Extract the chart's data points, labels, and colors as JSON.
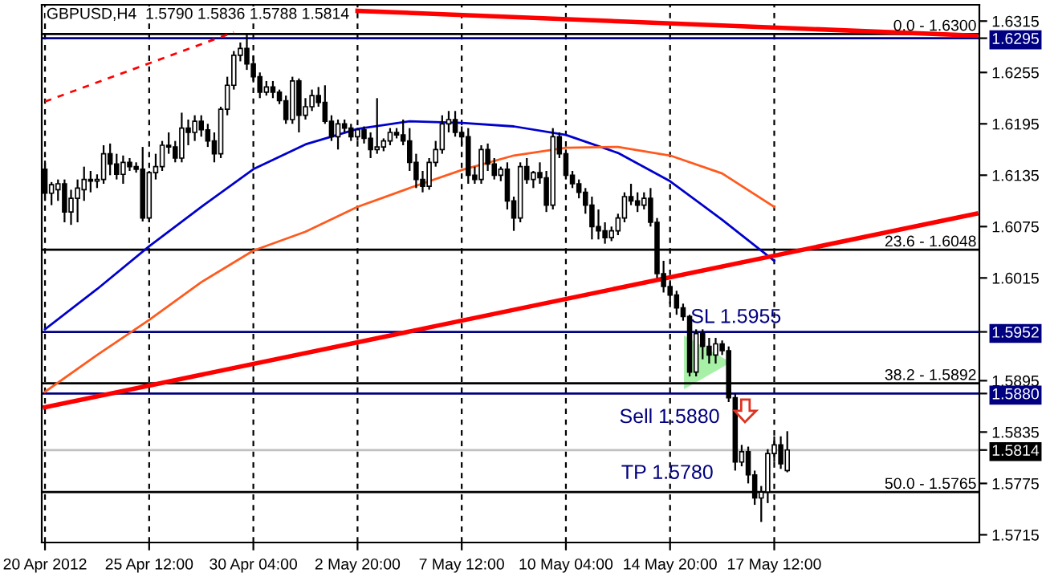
{
  "chart_data": {
    "type": "candlestick",
    "title": "GBPUSD,H4  1.5790 1.5836 1.5788 1.5814",
    "categories": [
      "20 Apr 2012",
      null,
      null,
      null,
      null,
      null,
      null,
      null,
      null,
      null,
      null,
      null,
      null,
      null,
      null,
      null,
      "25 Apr 12:00",
      null,
      null,
      null,
      null,
      null,
      null,
      null,
      null,
      null,
      null,
      null,
      null,
      null,
      null,
      null,
      "30 Apr 04:00",
      null,
      null,
      null,
      null,
      null,
      null,
      null,
      null,
      null,
      null,
      null,
      null,
      null,
      null,
      null,
      "2 May 20:00",
      null,
      null,
      null,
      null,
      null,
      null,
      null,
      null,
      null,
      null,
      null,
      null,
      null,
      null,
      null,
      "7 May 12:00",
      null,
      null,
      null,
      null,
      null,
      null,
      null,
      null,
      null,
      null,
      null,
      null,
      null,
      null,
      null,
      "10 May 04:00",
      null,
      null,
      null,
      null,
      null,
      null,
      null,
      null,
      null,
      null,
      null,
      null,
      null,
      null,
      null,
      "14 May 20:00",
      null,
      null,
      null,
      null,
      null,
      null,
      null,
      null,
      null,
      null,
      null,
      null,
      null,
      null,
      null,
      "17 May 12:00",
      null,
      null,
      null,
      null,
      null,
      null,
      null,
      null,
      null,
      null,
      null,
      null,
      null,
      null,
      null,
      null,
      null,
      null,
      null,
      null,
      null,
      null,
      null,
      null,
      null,
      null,
      null,
      null,
      null,
      null,
      null
    ],
    "ohlc": [
      [
        1.6142,
        1.6152,
        1.6105,
        1.6114
      ],
      [
        1.6114,
        1.6127,
        1.61,
        1.6124
      ],
      [
        1.6118,
        1.613,
        1.6105,
        1.6125
      ],
      [
        1.6125,
        1.613,
        1.608,
        1.6092
      ],
      [
        1.6092,
        1.6118,
        1.6077,
        1.6108
      ],
      [
        1.6108,
        1.613,
        1.608,
        1.612
      ],
      [
        1.6118,
        1.6145,
        1.6105,
        1.613
      ],
      [
        1.613,
        1.614,
        1.6115,
        1.6128
      ],
      [
        1.6128,
        1.6136,
        1.612,
        1.613
      ],
      [
        1.613,
        1.617,
        1.6125,
        1.616
      ],
      [
        1.616,
        1.6172,
        1.6135,
        1.6148
      ],
      [
        1.6148,
        1.616,
        1.613,
        1.6136
      ],
      [
        1.6136,
        1.6158,
        1.6125,
        1.615
      ],
      [
        1.615,
        1.6155,
        1.614,
        1.6145
      ],
      [
        1.6145,
        1.615,
        1.6138,
        1.6142
      ],
      [
        1.6142,
        1.6168,
        1.6081,
        1.6085
      ],
      [
        1.6085,
        1.614,
        1.608,
        1.6138
      ],
      [
        1.6138,
        1.616,
        1.613,
        1.6145
      ],
      [
        1.6145,
        1.6175,
        1.614,
        1.617
      ],
      [
        1.617,
        1.6185,
        1.616,
        1.6168
      ],
      [
        1.6168,
        1.6175,
        1.615,
        1.6155
      ],
      [
        1.6155,
        1.6208,
        1.615,
        1.619
      ],
      [
        1.619,
        1.62,
        1.617,
        1.6185
      ],
      [
        1.6185,
        1.6205,
        1.6175,
        1.6198
      ],
      [
        1.6198,
        1.6205,
        1.618,
        1.6188
      ],
      [
        1.6188,
        1.6195,
        1.6168,
        1.6175
      ],
      [
        1.6175,
        1.6185,
        1.615,
        1.616
      ],
      [
        1.616,
        1.6215,
        1.6155,
        1.6212
      ],
      [
        1.6212,
        1.625,
        1.6205,
        1.624
      ],
      [
        1.624,
        1.628,
        1.6235,
        1.6275
      ],
      [
        1.6275,
        1.629,
        1.6268,
        1.6283
      ],
      [
        1.6283,
        1.63,
        1.6258,
        1.6265
      ],
      [
        1.6265,
        1.6275,
        1.6245,
        1.625
      ],
      [
        1.625,
        1.6255,
        1.6225,
        1.6232
      ],
      [
        1.6232,
        1.6245,
        1.6228,
        1.6238
      ],
      [
        1.6238,
        1.6245,
        1.6225,
        1.6232
      ],
      [
        1.6232,
        1.6235,
        1.6218,
        1.6222
      ],
      [
        1.6222,
        1.6228,
        1.6195,
        1.62
      ],
      [
        1.62,
        1.625,
        1.6195,
        1.6245
      ],
      [
        1.6245,
        1.6248,
        1.6185,
        1.6205
      ],
      [
        1.6205,
        1.6225,
        1.62,
        1.6215
      ],
      [
        1.6215,
        1.6235,
        1.621,
        1.6228
      ],
      [
        1.6228,
        1.6238,
        1.6215,
        1.622
      ],
      [
        1.622,
        1.624,
        1.6195,
        1.6198
      ],
      [
        1.6198,
        1.6205,
        1.6175,
        1.618
      ],
      [
        1.618,
        1.62,
        1.6165,
        1.6195
      ],
      [
        1.6195,
        1.62,
        1.6185,
        1.619
      ],
      [
        1.619,
        1.6195,
        1.6175,
        1.618
      ],
      [
        1.618,
        1.619,
        1.6175,
        1.6188
      ],
      [
        1.6188,
        1.6192,
        1.6172,
        1.6178
      ],
      [
        1.6178,
        1.6185,
        1.6155,
        1.6165
      ],
      [
        1.6165,
        1.6225,
        1.616,
        1.6168
      ],
      [
        1.6168,
        1.6178,
        1.6163,
        1.6175
      ],
      [
        1.6175,
        1.619,
        1.617,
        1.6185
      ],
      [
        1.6185,
        1.619,
        1.6178,
        1.6182
      ],
      [
        1.6182,
        1.62,
        1.617,
        1.6175
      ],
      [
        1.6175,
        1.619,
        1.614,
        1.615
      ],
      [
        1.615,
        1.616,
        1.612,
        1.613
      ],
      [
        1.613,
        1.614,
        1.6115,
        1.6122
      ],
      [
        1.6122,
        1.6155,
        1.6118,
        1.615
      ],
      [
        1.615,
        1.6175,
        1.6145,
        1.6165
      ],
      [
        1.6165,
        1.6205,
        1.616,
        1.6195
      ],
      [
        1.6195,
        1.621,
        1.6185,
        1.62
      ],
      [
        1.62,
        1.621,
        1.618,
        1.6185
      ],
      [
        1.6185,
        1.6192,
        1.617,
        1.618
      ],
      [
        1.618,
        1.619,
        1.6125,
        1.6135
      ],
      [
        1.6135,
        1.6145,
        1.6125,
        1.613
      ],
      [
        1.613,
        1.617,
        1.6125,
        1.6165
      ],
      [
        1.6165,
        1.6172,
        1.614,
        1.6148
      ],
      [
        1.6148,
        1.6155,
        1.613,
        1.6135
      ],
      [
        1.6135,
        1.6145,
        1.6128,
        1.6142
      ],
      [
        1.6142,
        1.615,
        1.6095,
        1.6105
      ],
      [
        1.6105,
        1.611,
        1.607,
        1.6085
      ],
      [
        1.6085,
        1.615,
        1.608,
        1.6145
      ],
      [
        1.6145,
        1.6155,
        1.6125,
        1.613
      ],
      [
        1.613,
        1.614,
        1.612,
        1.6138
      ],
      [
        1.6138,
        1.615,
        1.6125,
        1.6132
      ],
      [
        1.6132,
        1.614,
        1.6092,
        1.61
      ],
      [
        1.61,
        1.619,
        1.6095,
        1.618
      ],
      [
        1.618,
        1.6185,
        1.6155,
        1.616
      ],
      [
        1.616,
        1.6165,
        1.613,
        1.6135
      ],
      [
        1.6135,
        1.614,
        1.612,
        1.6125
      ],
      [
        1.6125,
        1.613,
        1.6108,
        1.6115
      ],
      [
        1.6115,
        1.612,
        1.609,
        1.61
      ],
      [
        1.61,
        1.611,
        1.606,
        1.6075
      ],
      [
        1.6075,
        1.6095,
        1.606,
        1.607
      ],
      [
        1.607,
        1.608,
        1.6055,
        1.6062
      ],
      [
        1.6062,
        1.6075,
        1.6058,
        1.607
      ],
      [
        1.607,
        1.609,
        1.6065,
        1.6085
      ],
      [
        1.6085,
        1.6115,
        1.608,
        1.611
      ],
      [
        1.611,
        1.6125,
        1.61,
        1.6105
      ],
      [
        1.6105,
        1.6115,
        1.6092,
        1.61
      ],
      [
        1.61,
        1.6115,
        1.6095,
        1.6108
      ],
      [
        1.6108,
        1.612,
        1.6075,
        1.608
      ],
      [
        1.608,
        1.6085,
        1.6015,
        1.602
      ],
      [
        1.602,
        1.6035,
        1.5998,
        1.6005
      ],
      [
        1.6005,
        1.601,
        1.5985,
        1.5995
      ],
      [
        1.5995,
        1.6,
        1.5972,
        1.598
      ],
      [
        1.598,
        1.5985,
        1.5965,
        1.597
      ],
      [
        1.597,
        1.5972,
        1.59,
        1.5905
      ],
      [
        1.5905,
        1.5955,
        1.59,
        1.595
      ],
      [
        1.595,
        1.5955,
        1.592,
        1.5935
      ],
      [
        1.5935,
        1.5945,
        1.5915,
        1.5925
      ],
      [
        1.5925,
        1.5945,
        1.5915,
        1.5938
      ],
      [
        1.5938,
        1.5942,
        1.5925,
        1.593
      ],
      [
        1.593,
        1.5935,
        1.587,
        1.5875
      ],
      [
        1.5875,
        1.588,
        1.579,
        1.58
      ],
      [
        1.58,
        1.582,
        1.5795,
        1.5812
      ],
      [
        1.5812,
        1.5818,
        1.5775,
        1.5785
      ],
      [
        1.5785,
        1.579,
        1.575,
        1.5758
      ],
      [
        1.5758,
        1.5772,
        1.573,
        1.5765
      ],
      [
        1.5765,
        1.5815,
        1.5752,
        1.581
      ],
      [
        1.581,
        1.583,
        1.58,
        1.582
      ],
      [
        1.582,
        1.583,
        1.5792,
        1.5798
      ],
      [
        1.579,
        1.5836,
        1.5788,
        1.5814
      ],
      null,
      null,
      null,
      null,
      null,
      null,
      null,
      null,
      null,
      null,
      null,
      null,
      null,
      null,
      null,
      null,
      null,
      null,
      null,
      null,
      null,
      null,
      null,
      null,
      null,
      null,
      null,
      null,
      null
    ],
    "series": [
      {
        "type": "line",
        "color": "#0000cc",
        "line_style": "solid",
        "values": [
          1.5955,
          null,
          null,
          null,
          null,
          null,
          null,
          null,
          1.6002,
          null,
          null,
          null,
          null,
          null,
          null,
          null,
          1.6052,
          null,
          null,
          null,
          null,
          null,
          null,
          null,
          1.6098,
          null,
          null,
          null,
          null,
          null,
          null,
          null,
          1.6142,
          null,
          null,
          null,
          null,
          null,
          null,
          null,
          1.6171,
          null,
          null,
          null,
          null,
          null,
          null,
          null,
          1.6189,
          null,
          null,
          null,
          null,
          null,
          null,
          null,
          1.6198,
          null,
          null,
          null,
          null,
          null,
          null,
          null,
          1.6196,
          null,
          null,
          null,
          null,
          null,
          null,
          null,
          1.6192,
          null,
          null,
          null,
          null,
          null,
          null,
          null,
          1.6182,
          null,
          null,
          null,
          null,
          null,
          null,
          null,
          1.6161,
          null,
          null,
          null,
          null,
          null,
          null,
          null,
          1.6128,
          null,
          null,
          null,
          null,
          null,
          null,
          null,
          1.6083,
          null,
          null,
          null,
          null,
          null,
          null,
          null,
          1.6035,
          null,
          null,
          null,
          null,
          null,
          null,
          null,
          null,
          null,
          null,
          null,
          null,
          null,
          null,
          null,
          null,
          null,
          null,
          null,
          null,
          null,
          null,
          null,
          null,
          null,
          null,
          null,
          null,
          null,
          null,
          null
        ]
      },
      {
        "type": "line",
        "color": "#ff5a1e",
        "line_style": "solid",
        "values": [
          1.5882,
          null,
          null,
          null,
          null,
          null,
          null,
          null,
          1.5925,
          null,
          null,
          null,
          null,
          null,
          null,
          null,
          1.5966,
          null,
          null,
          null,
          null,
          null,
          null,
          null,
          1.601,
          null,
          null,
          null,
          null,
          null,
          null,
          null,
          1.6047,
          null,
          null,
          null,
          null,
          null,
          null,
          null,
          1.6069,
          null,
          null,
          null,
          null,
          null,
          null,
          null,
          1.6098,
          null,
          null,
          null,
          null,
          null,
          null,
          null,
          1.612,
          null,
          null,
          null,
          null,
          null,
          null,
          null,
          1.6141,
          null,
          null,
          null,
          null,
          null,
          null,
          null,
          1.6158,
          null,
          null,
          null,
          null,
          null,
          null,
          null,
          1.6167,
          null,
          null,
          null,
          null,
          null,
          null,
          null,
          1.6168,
          null,
          null,
          null,
          null,
          null,
          null,
          null,
          1.6158,
          null,
          null,
          null,
          null,
          null,
          null,
          null,
          1.6137,
          null,
          null,
          null,
          null,
          null,
          null,
          null,
          1.6098,
          null,
          null,
          null,
          null,
          null,
          null,
          null,
          null,
          null,
          null,
          null,
          null,
          null,
          null,
          null,
          null,
          null,
          null,
          null,
          null,
          null,
          null,
          null,
          null,
          null,
          null,
          null,
          null,
          null,
          null,
          null
        ]
      },
      {
        "type": "line",
        "color": "#ff0000",
        "line_style": "solid",
        "values": [
          null,
          null,
          null,
          null,
          null,
          null,
          null,
          null,
          null,
          null,
          null,
          null,
          null,
          null,
          null,
          null,
          null,
          null,
          null,
          null,
          null,
          null,
          null,
          null,
          null,
          null,
          null,
          null,
          null,
          null,
          null,
          null,
          null,
          null,
          null,
          null,
          null,
          null,
          null,
          null,
          null,
          null,
          null,
          null,
          null,
          null,
          null,
          null,
          1.6327,
          null,
          null,
          null,
          null,
          null,
          null,
          null,
          null,
          null,
          null,
          null,
          null,
          null,
          null,
          null,
          null,
          null,
          null,
          null,
          null,
          null,
          null,
          null,
          null,
          null,
          null,
          null,
          null,
          null,
          null,
          null,
          null,
          null,
          null,
          null,
          null,
          null,
          null,
          null,
          null,
          null,
          null,
          null,
          null,
          null,
          null,
          null,
          null,
          null,
          null,
          null,
          null,
          null,
          null,
          null,
          null,
          null,
          null,
          null,
          null,
          null,
          null,
          null,
          null,
          null,
          null,
          null,
          null,
          null,
          null,
          null,
          null,
          null,
          null,
          null,
          null,
          null,
          null,
          null,
          null,
          null,
          null,
          null,
          null,
          null,
          null,
          null,
          null,
          null,
          null,
          null,
          null,
          null,
          null,
          1.6298
        ]
      },
      {
        "type": "line",
        "color": "#ff0000",
        "line_style": "dashed",
        "values": [
          1.6221,
          null,
          null,
          null,
          null,
          null,
          null,
          null,
          null,
          null,
          null,
          null,
          null,
          null,
          null,
          null,
          null,
          null,
          null,
          null,
          null,
          null,
          null,
          null,
          null,
          null,
          null,
          null,
          null,
          1.6302,
          null,
          null,
          null,
          null,
          null,
          null,
          null,
          null,
          null,
          null,
          null,
          null,
          null,
          null,
          null,
          null,
          null,
          null,
          null,
          null,
          null,
          null,
          null,
          null,
          null,
          null,
          null,
          null,
          null,
          null,
          null,
          null,
          null,
          null,
          null,
          null,
          null,
          null,
          null,
          null,
          null,
          null,
          null,
          null,
          null,
          null,
          null,
          null,
          null,
          null,
          null,
          null,
          null,
          null,
          null,
          null,
          null,
          null,
          null,
          null,
          null,
          null,
          null,
          null,
          null,
          null,
          null,
          null,
          null,
          null,
          null,
          null,
          null,
          null,
          null,
          null,
          null,
          null,
          null,
          null,
          null,
          null,
          null,
          null,
          null,
          null,
          null,
          null,
          null,
          null,
          null,
          null,
          null,
          null,
          null,
          null,
          null,
          null,
          null,
          null,
          null,
          null,
          null,
          null,
          null,
          null,
          null,
          null,
          null,
          null,
          null,
          null,
          null,
          null
        ]
      },
      {
        "type": "line",
        "color": "#ff0000",
        "line_style": "solid",
        "values": [
          1.5864,
          null,
          null,
          null,
          null,
          null,
          null,
          null,
          null,
          null,
          null,
          null,
          null,
          null,
          null,
          null,
          null,
          null,
          null,
          null,
          null,
          null,
          null,
          null,
          null,
          null,
          null,
          null,
          null,
          null,
          null,
          null,
          null,
          null,
          null,
          null,
          null,
          null,
          null,
          null,
          null,
          null,
          null,
          null,
          null,
          null,
          null,
          null,
          null,
          null,
          null,
          null,
          null,
          null,
          null,
          null,
          null,
          null,
          null,
          null,
          null,
          null,
          null,
          null,
          null,
          null,
          null,
          null,
          null,
          null,
          null,
          null,
          null,
          null,
          null,
          null,
          null,
          null,
          null,
          null,
          null,
          null,
          null,
          null,
          null,
          null,
          null,
          null,
          null,
          null,
          null,
          null,
          null,
          null,
          null,
          null,
          null,
          null,
          null,
          null,
          null,
          null,
          null,
          null,
          null,
          null,
          null,
          null,
          null,
          null,
          null,
          null,
          null,
          null,
          null,
          null,
          null,
          null,
          null,
          null,
          null,
          null,
          null,
          null,
          null,
          null,
          null,
          null,
          null,
          null,
          null,
          null,
          null,
          null,
          null,
          null,
          null,
          null,
          null,
          null,
          null,
          null,
          null,
          1.609
        ]
      }
    ],
    "ref_lines": [
      {
        "axis": "y",
        "value": 1.63,
        "color": "#000000"
      },
      {
        "axis": "y",
        "value": 1.6048,
        "color": "#000000"
      },
      {
        "axis": "y",
        "value": 1.5892,
        "color": "#000000"
      },
      {
        "axis": "y",
        "value": 1.5765,
        "color": "#000000"
      },
      {
        "axis": "y",
        "value": 1.6295,
        "color": "#000080"
      },
      {
        "axis": "y",
        "value": 1.5952,
        "color": "#000080"
      },
      {
        "axis": "y",
        "value": 1.588,
        "color": "#000080"
      },
      {
        "axis": "y",
        "value": 1.5814,
        "color": "#c0c0c0"
      }
    ],
    "annotations": [
      "0.0 - 1.6300",
      "23.6 - 1.6048",
      "38.2 - 1.5892",
      "50.0 - 1.5765",
      "SL 1.5955",
      "Sell 1.5880",
      "TP 1.5780"
    ],
    "ylim": [
      1.5706,
      1.6334
    ],
    "yticks": [
      1.6315,
      1.6295,
      1.6255,
      1.6195,
      1.6135,
      1.6075,
      1.6015,
      1.5952,
      1.5895,
      {
        "value": 1.588,
        "label": "1.5880"
      },
      1.5835,
      1.5814,
      1.5775,
      1.5715
    ],
    "grid": "x",
    "legend": false
  }
}
